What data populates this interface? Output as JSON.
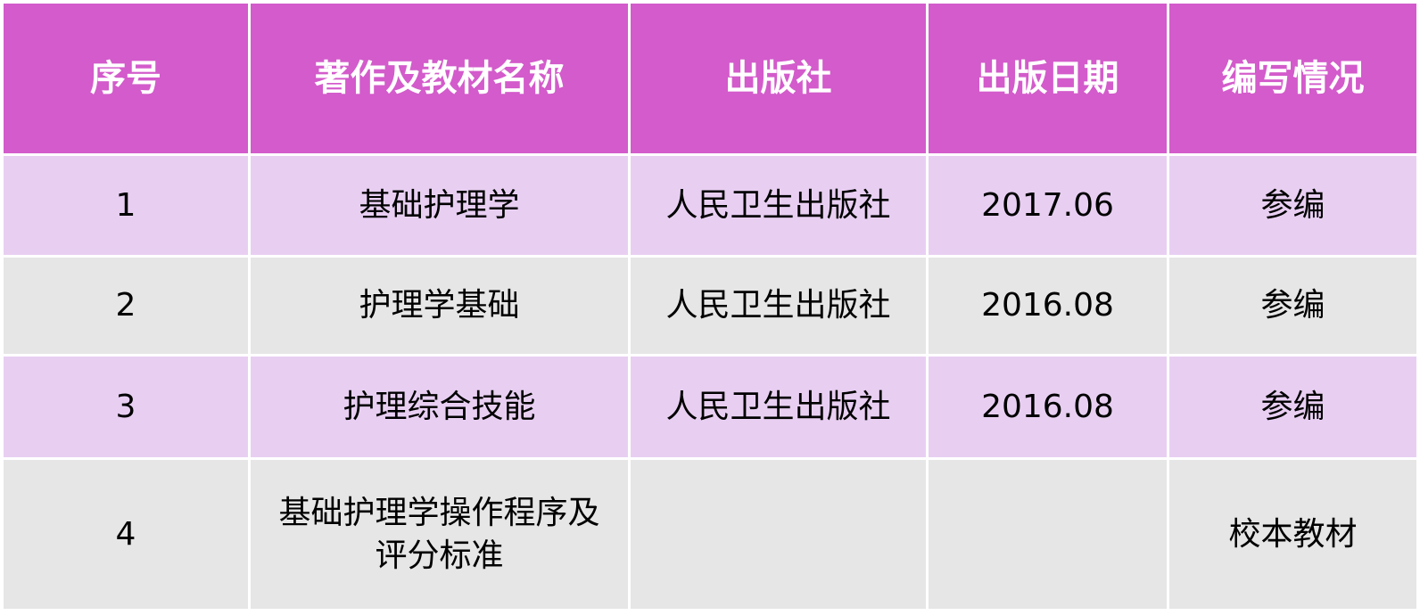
{
  "headers": [
    "序号",
    "著作及教材名称",
    "出版社",
    "出版日期",
    "编写情况"
  ],
  "rows": [
    {
      "no": "1",
      "title": "基础护理学",
      "publisher": "人民卫生出版社",
      "date": "2017.06",
      "role": "参编"
    },
    {
      "no": "2",
      "title": "护理学基础",
      "publisher": "人民卫生出版社",
      "date": "2016.08",
      "role": "参编"
    },
    {
      "no": "3",
      "title": "护理综合技能",
      "publisher": "人民卫生出版社",
      "date": "2016.08",
      "role": "参编"
    },
    {
      "no": "4",
      "title": "基础护理学操作程序及评分标准",
      "publisher": "",
      "date": "",
      "role": "校本教材"
    }
  ],
  "colors": {
    "header": "#D35BCB",
    "row_light": "#E8CFF2",
    "row_gray": "#E6E6E6"
  }
}
